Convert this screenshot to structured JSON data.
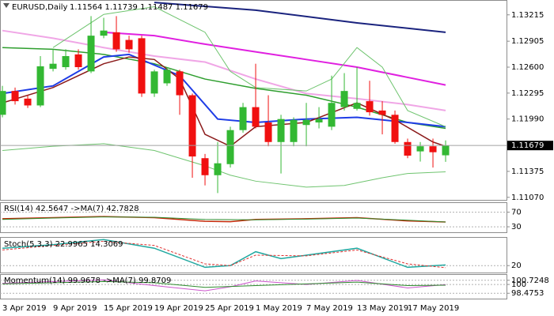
{
  "chart_data": [
    {
      "type": "candlestick",
      "title": "EURUSD,Daily",
      "ohlc_text": "1.11564 1.11739 1.11487 1.11679",
      "categories": [
        "3 Apr 2019",
        null,
        null,
        null,
        "9 Apr 2019",
        null,
        null,
        null,
        "15 Apr 2019",
        null,
        null,
        null,
        "19 Apr 2019",
        null,
        null,
        null,
        "25 Apr 2019",
        null,
        null,
        null,
        "1 May 2019",
        null,
        null,
        null,
        "7 May 2019",
        null,
        null,
        null,
        "13 May 2019",
        null,
        null,
        null,
        "17 May 2019",
        null,
        null,
        null
      ],
      "open": [
        1.1204,
        1.1232,
        1.1223,
        1.1215,
        1.1258,
        1.126,
        1.1275,
        1.1255,
        1.1297,
        1.1301,
        1.1292,
        1.1294,
        1.1229,
        1.1241,
        1.1255,
        1.1227,
        1.1153,
        1.1133,
        1.1146,
        1.1186,
        1.1213,
        1.1195,
        1.1172,
        1.1172,
        1.1192,
        1.1195,
        1.119,
        1.1213,
        1.1211,
        1.122,
        1.1209,
        1.1204,
        1.1172,
        1.1161,
        1.1167,
        1.11564
      ],
      "high": [
        1.1238,
        1.1236,
        1.1227,
        1.1273,
        1.1281,
        1.1281,
        1.1281,
        1.132,
        1.1318,
        1.132,
        1.1297,
        1.1297,
        1.1257,
        1.126,
        1.1257,
        1.1229,
        1.1158,
        1.1172,
        1.119,
        1.1218,
        1.1264,
        1.1227,
        1.1204,
        1.1201,
        1.1218,
        1.1213,
        1.125,
        1.1253,
        1.126,
        1.1244,
        1.122,
        1.1209,
        1.1176,
        1.1172,
        1.1176,
        1.11739
      ],
      "low": [
        1.1201,
        1.1216,
        1.1212,
        1.1213,
        1.1255,
        1.1257,
        1.1257,
        1.1253,
        1.1294,
        1.1278,
        1.1277,
        1.1225,
        1.1225,
        1.1238,
        1.1204,
        1.113,
        1.1121,
        1.1112,
        1.1142,
        1.1183,
        1.1188,
        1.1167,
        1.1135,
        1.1167,
        1.1167,
        1.1188,
        1.1186,
        1.1209,
        1.1209,
        1.1203,
        1.1181,
        1.117,
        1.1153,
        1.1149,
        1.1142,
        1.11487
      ],
      "close": [
        1.1232,
        1.122,
        1.1215,
        1.1261,
        1.1264,
        1.1273,
        1.126,
        1.1297,
        1.1303,
        1.1281,
        1.1281,
        1.1229,
        1.1255,
        1.1257,
        1.1227,
        1.1155,
        1.1133,
        1.1147,
        1.1186,
        1.1213,
        1.119,
        1.1172,
        1.1199,
        1.1198,
        1.1198,
        1.1199,
        1.1218,
        1.1232,
        1.1218,
        1.1207,
        1.1204,
        1.1172,
        1.1156,
        1.1167,
        1.116,
        1.11679
      ],
      "up_color": "#33b833",
      "down_color": "#f01010",
      "xlim": [
        -0.19,
        39.81
      ],
      "ylim": [
        1.1104,
        1.1338
      ],
      "yticks": [
        1.13215,
        1.12905,
        {
          "value": 1.126,
          "label": "1.12600"
        },
        1.12295,
        {
          "value": 1.1199,
          "label": "1.11990"
        },
        1.11375,
        {
          "value": 1.1107,
          "label": "1.11070"
        }
      ],
      "current_price": 1.11679,
      "series": [
        {
          "color": "#1a237e",
          "width": 2,
          "x": [
            12,
            20,
            28,
            35
          ],
          "values": [
            1.1336,
            1.1327,
            1.1312,
            1.1301
          ]
        },
        {
          "color": "#e020e0",
          "width": 2,
          "x": [
            8,
            12,
            16,
            20,
            24,
            28,
            32,
            35
          ],
          "values": [
            1.1301,
            1.1297,
            1.1287,
            1.1278,
            1.1269,
            1.126,
            1.1248,
            1.1239
          ]
        },
        {
          "color": "#f0a6e6",
          "width": 2,
          "x": [
            0,
            4,
            8,
            12,
            16,
            20,
            24,
            28,
            32,
            35
          ],
          "values": [
            1.1303,
            1.1294,
            1.1283,
            1.1273,
            1.1266,
            1.1246,
            1.1229,
            1.1223,
            1.1216,
            1.1209
          ]
        },
        {
          "color": "#2e9e2e",
          "width": 1.5,
          "x": [
            0,
            4,
            8,
            12,
            16,
            20,
            24,
            28,
            32,
            35
          ],
          "values": [
            1.1283,
            1.1281,
            1.1275,
            1.1264,
            1.1246,
            1.1235,
            1.1227,
            1.1213,
            1.1195,
            1.1188
          ]
        },
        {
          "color": "#1e3ce6",
          "width": 2,
          "x": [
            0,
            4,
            8,
            10,
            14,
            17,
            20,
            24,
            28,
            32,
            35
          ],
          "values": [
            1.1229,
            1.1238,
            1.1272,
            1.1275,
            1.125,
            1.1199,
            1.1195,
            1.1199,
            1.1201,
            1.1195,
            1.119
          ]
        },
        {
          "color": "#8b1a1a",
          "width": 1.5,
          "x": [
            0,
            4,
            8,
            10,
            12,
            14,
            16,
            18,
            20,
            24,
            28,
            31,
            34,
            35
          ],
          "values": [
            1.1218,
            1.1236,
            1.1264,
            1.1272,
            1.1269,
            1.1246,
            1.1181,
            1.1167,
            1.119,
            1.1195,
            1.1218,
            1.1198,
            1.1172,
            1.1167
          ]
        },
        {
          "color": "#6fc46f",
          "width": 1,
          "x": [
            4,
            8,
            12,
            16,
            18,
            20,
            24,
            26,
            28,
            30,
            32,
            35
          ],
          "values": [
            1.1283,
            1.1322,
            1.1331,
            1.1301,
            1.1255,
            1.1236,
            1.1232,
            1.1246,
            1.1283,
            1.126,
            1.1209,
            1.119
          ]
        },
        {
          "color": "#6fc46f",
          "width": 1,
          "x": [
            0,
            4,
            8,
            12,
            14,
            16,
            18,
            20,
            24,
            27,
            30,
            32,
            35
          ],
          "values": [
            1.1162,
            1.1167,
            1.117,
            1.1162,
            1.1153,
            1.1144,
            1.1133,
            1.1126,
            1.1119,
            1.1121,
            1.113,
            1.1135,
            1.1137
          ]
        }
      ]
    },
    {
      "type": "line",
      "title": "RSI(14) 42.5647  ->MA(7) 42.7828",
      "xlim": [
        -0.19,
        39.81
      ],
      "ylim": [
        15,
        95
      ],
      "yticks": [
        70,
        30
      ],
      "series": [
        {
          "color": "#c62a0a",
          "width": 1.5,
          "x": [
            0,
            4,
            8,
            12,
            16,
            18,
            20,
            24,
            28,
            32,
            35
          ],
          "values": [
            52,
            55,
            58,
            55,
            45,
            44,
            50,
            52,
            55,
            46,
            43
          ]
        },
        {
          "color": "#2e8b2e",
          "width": 1,
          "x": [
            0,
            4,
            8,
            12,
            16,
            20,
            24,
            28,
            32,
            35
          ],
          "values": [
            50,
            54,
            57,
            56,
            50,
            49,
            51,
            54,
            48,
            43
          ]
        }
      ]
    },
    {
      "type": "line",
      "title": "Stoch(5,3,3) 22.9965 14.3069",
      "xlim": [
        -0.19,
        39.81
      ],
      "ylim": [
        0,
        100
      ],
      "yticks": [
        20
      ],
      "series": [
        {
          "color": "#20a8a0",
          "width": 1.5,
          "x": [
            0,
            4,
            8,
            12,
            16,
            18,
            20,
            22,
            24,
            28,
            32,
            35
          ],
          "values": [
            70,
            80,
            95,
            70,
            15,
            20,
            60,
            40,
            50,
            70,
            15,
            22
          ]
        },
        {
          "color": "#e03030",
          "width": 1,
          "dash": true,
          "x": [
            0,
            4,
            8,
            12,
            16,
            18,
            20,
            24,
            28,
            32,
            35
          ],
          "values": [
            65,
            78,
            90,
            78,
            25,
            20,
            50,
            48,
            65,
            25,
            14
          ]
        }
      ]
    },
    {
      "type": "line",
      "title": "Momentum(14) 99.9678  ->MA(7) 99.8709",
      "xlim": [
        -0.19,
        39.81
      ],
      "ylim": [
        97.55,
        101.65
      ],
      "yticks": [
        100.7248,
        100,
        98.4753
      ],
      "series": [
        {
          "color": "#cc55cc",
          "width": 1,
          "x": [
            0,
            4,
            8,
            12,
            16,
            18,
            20,
            24,
            28,
            32,
            35
          ],
          "values": [
            100.2,
            100.5,
            100.8,
            99.8,
            98.9,
            99.6,
            100.6,
            100.0,
            100.7,
            99.4,
            99.97
          ]
        },
        {
          "color": "#2e8b2e",
          "width": 1,
          "x": [
            0,
            8,
            12,
            16,
            20,
            24,
            28,
            32,
            35
          ],
          "values": [
            100.1,
            100.5,
            100.3,
            99.5,
            99.8,
            100.1,
            100.4,
            99.8,
            99.87
          ]
        }
      ]
    }
  ]
}
